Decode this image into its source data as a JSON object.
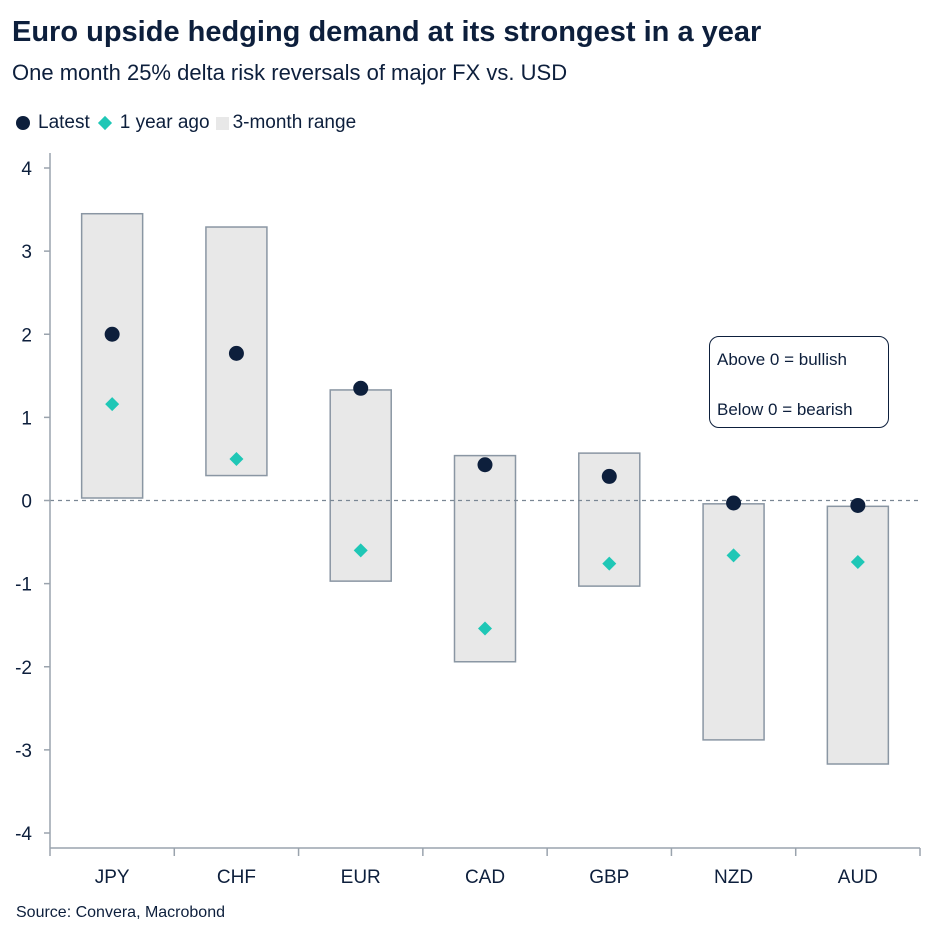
{
  "title": "Euro upside hedging demand at its strongest in a year",
  "subtitle": "One month 25% delta risk reversals of major FX vs. USD",
  "legend": {
    "latest": "Latest",
    "year_ago": "1 year ago",
    "range": "3-month range"
  },
  "annotation": {
    "line1": "Above 0 = bullish",
    "line2": "Below 0 = bearish"
  },
  "source": "Source: Convera, Macrobond",
  "colors": {
    "latest": "#0d1f3c",
    "year_ago": "#1fc7b6",
    "range_fill": "#e8e8e8",
    "range_border": "#8a96a3",
    "axis": "#9aa3ad"
  },
  "chart_data": {
    "type": "range-dot",
    "categories": [
      "JPY",
      "CHF",
      "EUR",
      "CAD",
      "GBP",
      "NZD",
      "AUD"
    ],
    "series": [
      {
        "name": "Latest",
        "values": [
          2.0,
          1.77,
          1.35,
          0.43,
          0.29,
          -0.03,
          -0.06
        ]
      },
      {
        "name": "1 year ago",
        "values": [
          1.16,
          0.5,
          -0.6,
          -1.54,
          -0.76,
          -0.66,
          -0.74
        ]
      },
      {
        "name": "3-month range",
        "ranges": [
          [
            0.03,
            3.45
          ],
          [
            0.3,
            3.29
          ],
          [
            -0.97,
            1.33
          ],
          [
            -1.94,
            0.54
          ],
          [
            -1.03,
            0.57
          ],
          [
            -2.88,
            -0.04
          ],
          [
            -3.17,
            -0.07
          ]
        ]
      }
    ],
    "y_ticks": [
      "4",
      "3",
      "2",
      "1",
      "0",
      "-1",
      "-2",
      "-3",
      "-4"
    ],
    "ylim": [
      -4,
      4
    ],
    "zero_line": "dashed",
    "grid": false,
    "legend_position": "top-left"
  }
}
